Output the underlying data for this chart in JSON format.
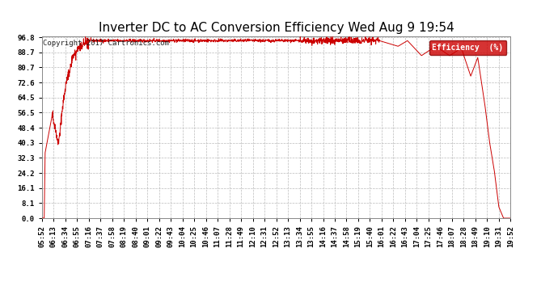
{
  "title": "Inverter DC to AC Conversion Efficiency Wed Aug 9 19:54",
  "copyright": "Copyright 2017 Cartronics.com",
  "legend_label": "Efficiency  (%)",
  "legend_bg": "#cc0000",
  "legend_text_color": "#ffffff",
  "line_color": "#cc0000",
  "bg_color": "#ffffff",
  "plot_bg_color": "#ffffff",
  "grid_color": "#bbbbbb",
  "title_fontsize": 11,
  "copyright_fontsize": 6.5,
  "tick_fontsize": 6.5,
  "ytick_values": [
    0.0,
    8.1,
    16.1,
    24.2,
    32.3,
    40.3,
    48.4,
    56.5,
    64.5,
    72.6,
    80.7,
    88.7,
    96.8
  ],
  "xtick_labels": [
    "05:52",
    "06:13",
    "06:34",
    "06:55",
    "07:16",
    "07:37",
    "07:58",
    "08:19",
    "08:40",
    "09:01",
    "09:22",
    "09:43",
    "10:04",
    "10:25",
    "10:46",
    "11:07",
    "11:28",
    "11:49",
    "12:10",
    "12:31",
    "12:52",
    "13:13",
    "13:34",
    "13:55",
    "14:16",
    "14:37",
    "14:58",
    "15:19",
    "15:40",
    "16:01",
    "16:22",
    "16:43",
    "17:04",
    "17:25",
    "17:46",
    "18:07",
    "18:28",
    "18:49",
    "19:10",
    "19:31",
    "19:52"
  ],
  "ymin": 0.0,
  "ymax": 96.8,
  "total_minutes": 840
}
